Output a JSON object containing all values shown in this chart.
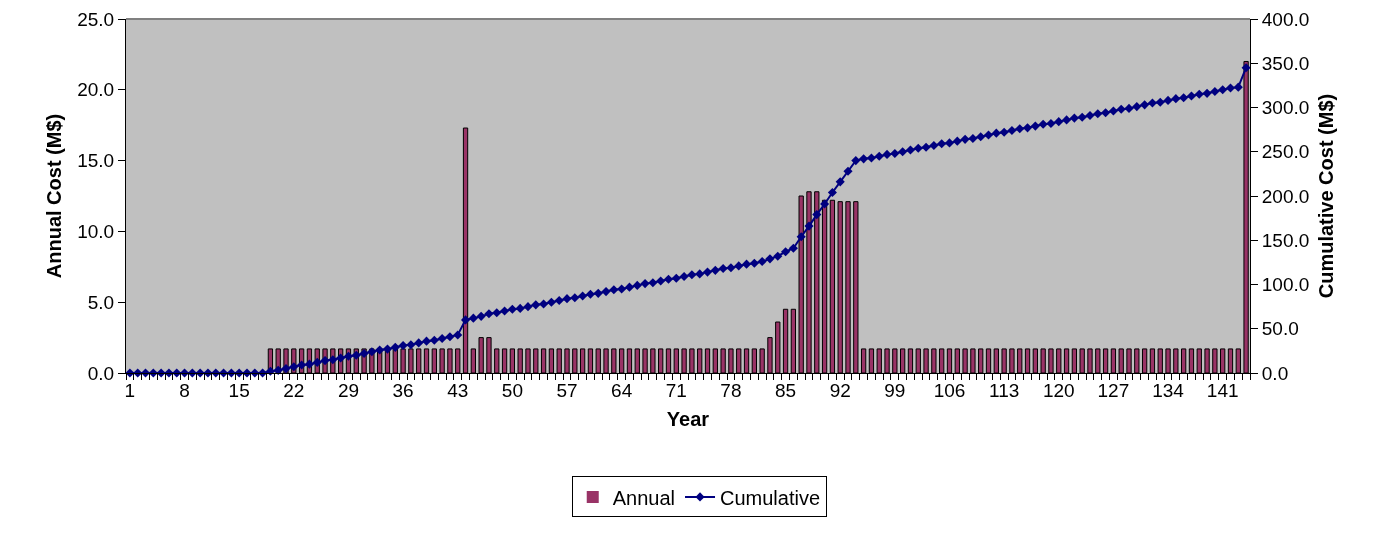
{
  "chart_data": {
    "type": "bar",
    "xlabel": "Year",
    "ylabel": "Annual Cost (M$)",
    "y2label": "Cumulative Cost (M$)",
    "categories": [
      "1",
      null,
      null,
      null,
      null,
      null,
      null,
      "8",
      null,
      null,
      null,
      null,
      null,
      null,
      "15",
      null,
      null,
      null,
      null,
      null,
      null,
      "22",
      null,
      null,
      null,
      null,
      null,
      null,
      "29",
      null,
      null,
      null,
      null,
      null,
      null,
      "36",
      null,
      null,
      null,
      null,
      null,
      null,
      "43",
      null,
      null,
      null,
      null,
      null,
      null,
      "50",
      null,
      null,
      null,
      null,
      null,
      null,
      "57",
      null,
      null,
      null,
      null,
      null,
      null,
      "64",
      null,
      null,
      null,
      null,
      null,
      null,
      "71",
      null,
      null,
      null,
      null,
      null,
      null,
      "78",
      null,
      null,
      null,
      null,
      null,
      null,
      "85",
      null,
      null,
      null,
      null,
      null,
      null,
      "92",
      null,
      null,
      null,
      null,
      null,
      null,
      "99",
      null,
      null,
      null,
      null,
      null,
      null,
      "106",
      null,
      null,
      null,
      null,
      null,
      null,
      "113",
      null,
      null,
      null,
      null,
      null,
      null,
      "120",
      null,
      null,
      null,
      null,
      null,
      null,
      "127",
      null,
      null,
      null,
      null,
      null,
      null,
      "134",
      null,
      null,
      null,
      null,
      null,
      null,
      "141",
      null,
      null,
      null
    ],
    "series": [
      {
        "name": "Annual",
        "color": "#993366",
        "values": [
          0,
          0,
          0,
          0,
          0,
          0,
          0,
          0,
          0,
          0,
          0,
          0,
          0,
          0,
          0,
          0,
          0,
          0,
          1.7,
          1.7,
          1.7,
          1.7,
          1.7,
          1.7,
          1.7,
          1.7,
          1.7,
          1.7,
          1.7,
          1.7,
          1.7,
          1.7,
          1.7,
          1.7,
          1.7,
          1.7,
          1.7,
          1.7,
          1.7,
          1.7,
          1.7,
          1.7,
          1.7,
          17.3,
          1.7,
          2.5,
          2.5,
          1.7,
          1.7,
          1.7,
          1.7,
          1.7,
          1.7,
          1.7,
          1.7,
          1.7,
          1.7,
          1.7,
          1.7,
          1.7,
          1.7,
          1.7,
          1.7,
          1.7,
          1.7,
          1.7,
          1.7,
          1.7,
          1.7,
          1.7,
          1.7,
          1.7,
          1.7,
          1.7,
          1.7,
          1.7,
          1.7,
          1.7,
          1.7,
          1.7,
          1.7,
          1.7,
          2.5,
          3.6,
          4.5,
          4.5,
          12.5,
          12.8,
          12.8,
          12.2,
          12.2,
          12.1,
          12.1,
          12.1,
          1.7,
          1.7,
          1.7,
          1.7,
          1.7,
          1.7,
          1.7,
          1.7,
          1.7,
          1.7,
          1.7,
          1.7,
          1.7,
          1.7,
          1.7,
          1.7,
          1.7,
          1.7,
          1.7,
          1.7,
          1.7,
          1.7,
          1.7,
          1.7,
          1.7,
          1.7,
          1.7,
          1.7,
          1.7,
          1.7,
          1.7,
          1.7,
          1.7,
          1.7,
          1.7,
          1.7,
          1.7,
          1.7,
          1.7,
          1.7,
          1.7,
          1.7,
          1.7,
          1.7,
          1.7,
          1.7,
          1.7,
          1.7,
          1.7,
          22.0
        ]
      },
      {
        "name": "Cumulative",
        "type": "line",
        "axis": "y2",
        "color": "#000080",
        "values": [
          0,
          0,
          0,
          0,
          0,
          0,
          0,
          0,
          0,
          0,
          0,
          0,
          0,
          0,
          0,
          0,
          0,
          0,
          2,
          3,
          5,
          7,
          9,
          10,
          12,
          14,
          15,
          17,
          19,
          20,
          22,
          24,
          26,
          27,
          29,
          31,
          32,
          34,
          36,
          37,
          39,
          41,
          43,
          60,
          62,
          64,
          67,
          68,
          70,
          72,
          73,
          75,
          77,
          78,
          80,
          82,
          84,
          85,
          87,
          89,
          90,
          92,
          94,
          95,
          97,
          99,
          101,
          102,
          104,
          106,
          107,
          109,
          111,
          112,
          114,
          116,
          118,
          119,
          121,
          123,
          124,
          126,
          129,
          132,
          137,
          141,
          154,
          166,
          179,
          191,
          204,
          216,
          228,
          240,
          242,
          243,
          245,
          247,
          248,
          250,
          252,
          254,
          255,
          257,
          259,
          260,
          262,
          264,
          265,
          267,
          269,
          271,
          272,
          274,
          276,
          277,
          279,
          281,
          282,
          284,
          286,
          288,
          289,
          291,
          293,
          294,
          296,
          298,
          299,
          301,
          303,
          305,
          306,
          308,
          310,
          311,
          313,
          315,
          316,
          318,
          320,
          322,
          323,
          345
        ]
      }
    ],
    "ylim": [
      0,
      25
    ],
    "yticks": [
      {
        "value": 0,
        "label": "0.0"
      },
      {
        "value": 5,
        "label": "5.0"
      },
      {
        "value": 10,
        "label": "10.0"
      },
      {
        "value": 15,
        "label": "15.0"
      },
      {
        "value": 20,
        "label": "20.0"
      },
      {
        "value": 25,
        "label": "25.0"
      }
    ],
    "y2lim": [
      0,
      400
    ],
    "y2ticks": [
      {
        "value": 0,
        "label": "0.0"
      },
      {
        "value": 50,
        "label": "50.0"
      },
      {
        "value": 100,
        "label": "100.0"
      },
      {
        "value": 150,
        "label": "150.0"
      },
      {
        "value": 200,
        "label": "200.0"
      },
      {
        "value": 250,
        "label": "250.0"
      },
      {
        "value": 300,
        "label": "300.0"
      },
      {
        "value": 350,
        "label": "350.0"
      },
      {
        "value": 400,
        "label": "400.0"
      }
    ],
    "marker": "diamond",
    "legend": "bottom"
  }
}
